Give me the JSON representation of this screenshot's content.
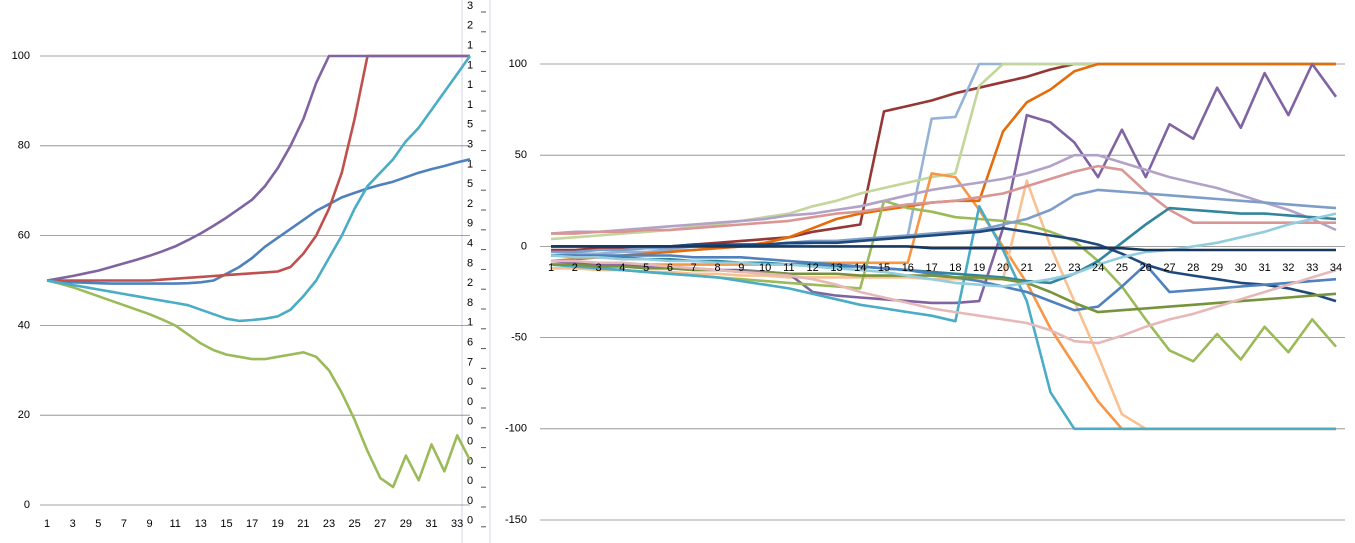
{
  "chart_data": [
    {
      "type": "line",
      "categories": [
        1,
        null,
        3,
        null,
        5,
        null,
        7,
        null,
        9,
        null,
        11,
        null,
        13,
        null,
        15,
        null,
        17,
        null,
        19,
        null,
        21,
        null,
        23,
        null,
        25,
        null,
        27,
        null,
        29,
        null,
        31,
        null,
        33,
        null
      ],
      "ylim": [
        0,
        100
      ],
      "yticks": [
        0,
        20,
        40,
        60,
        80,
        100
      ],
      "grid": true,
      "series": [
        {
          "color": "#4f81bd",
          "values": [
            50,
            49.8,
            49.6,
            49.5,
            49.4,
            49.3,
            49.3,
            49.3,
            49.3,
            49.3,
            49.3,
            49.4,
            49.6,
            50,
            51.5,
            53,
            55,
            57.5,
            59.5,
            61.5,
            63.5,
            65.5,
            67,
            68.5,
            69.5,
            70.5,
            71.3,
            72,
            73,
            74,
            74.8,
            75.5,
            76.3,
            77
          ]
        },
        {
          "color": "#c0504d",
          "values": [
            50,
            50,
            50,
            50,
            50,
            50,
            50,
            50,
            50,
            50.2,
            50.4,
            50.6,
            50.8,
            51,
            51.2,
            51.4,
            51.6,
            51.8,
            52,
            53,
            56,
            60,
            66,
            74,
            86,
            100,
            100,
            100,
            100,
            100,
            100,
            100,
            100,
            100
          ]
        },
        {
          "color": "#9bbb59",
          "values": [
            50,
            49.3,
            48.5,
            47.5,
            46.5,
            45.5,
            44.5,
            43.5,
            42.5,
            41.3,
            40,
            38,
            36,
            34.5,
            33.5,
            33,
            32.5,
            32.5,
            33,
            33.5,
            34,
            33,
            30,
            25,
            19,
            12,
            6,
            4,
            11,
            5.5,
            13.5,
            7.5,
            15.5,
            10
          ]
        },
        {
          "color": "#8064a2",
          "values": [
            50,
            50.5,
            51,
            51.6,
            52.2,
            53,
            53.8,
            54.6,
            55.5,
            56.5,
            57.6,
            59,
            60.5,
            62.2,
            64,
            66,
            68,
            71,
            75,
            80,
            86,
            94,
            100,
            100,
            100,
            100,
            100,
            100,
            100,
            100,
            100,
            100,
            100,
            100
          ]
        },
        {
          "color": "#4bacc6",
          "values": [
            50,
            49.5,
            49,
            48.5,
            48,
            47.5,
            47,
            46.5,
            46,
            45.5,
            45,
            44.5,
            43.5,
            42.5,
            41.5,
            41,
            41.2,
            41.5,
            42,
            43.5,
            46.5,
            50,
            55,
            60,
            66,
            71,
            74,
            77,
            81,
            84,
            88,
            92,
            96,
            100
          ]
        }
      ]
    },
    {
      "type": "line",
      "categories": [
        1,
        2,
        3,
        4,
        5,
        6,
        7,
        8,
        9,
        10,
        11,
        12,
        13,
        14,
        15,
        16,
        17,
        18,
        19,
        20,
        21,
        22,
        23,
        24,
        25,
        26,
        27,
        28,
        29,
        30,
        31,
        32,
        33,
        34
      ],
      "ylim": [
        -150,
        100
      ],
      "yticks": [
        -150,
        -100,
        -50,
        0,
        50,
        100
      ],
      "grid": true,
      "series": [
        {
          "color": "#953735",
          "values": [
            -2,
            -2,
            -1,
            -1,
            0,
            0,
            1,
            2,
            3,
            4,
            5,
            8,
            10,
            12,
            74,
            77,
            80,
            84,
            87,
            90,
            93,
            97,
            100,
            100,
            100,
            100,
            100,
            100,
            100,
            100,
            100,
            100,
            100,
            100
          ]
        },
        {
          "color": "#95b3d7",
          "values": [
            -5,
            -4,
            -4,
            -3,
            -3,
            -2,
            -2,
            -1,
            0,
            0,
            1,
            2,
            3,
            4,
            5,
            6,
            70,
            71,
            100,
            100,
            100,
            100,
            100,
            100,
            100,
            100,
            100,
            100,
            100,
            100,
            100,
            100,
            100,
            100
          ]
        },
        {
          "color": "#c3d69b",
          "values": [
            4,
            5,
            6,
            7,
            8,
            9,
            11,
            12,
            14,
            16,
            18,
            22,
            25,
            29,
            32,
            35,
            38,
            40,
            88,
            100,
            100,
            100,
            100,
            100,
            100,
            100,
            100,
            100,
            100,
            100,
            100,
            100,
            100,
            100
          ]
        },
        {
          "color": "#f79646",
          "values": [
            -10,
            -10,
            -10,
            -10,
            -10,
            -10,
            -10,
            -10,
            -10,
            -10,
            -10,
            -9,
            -9,
            -9,
            -9,
            -9,
            40,
            38,
            20,
            0,
            -20,
            -45,
            -65,
            -85,
            -100,
            -100,
            -100,
            -100,
            -100,
            -100,
            -100,
            -100,
            -100,
            -100
          ]
        },
        {
          "color": "#e46c0a",
          "values": [
            -8,
            -7,
            -6,
            -5,
            -4,
            -3,
            -2,
            -1,
            0,
            2,
            5,
            10,
            15,
            18,
            20,
            22,
            24,
            25,
            25,
            63,
            79,
            86,
            96,
            100,
            100,
            100,
            100,
            100,
            100,
            100,
            100,
            100,
            100,
            100
          ]
        },
        {
          "color": "#fac090",
          "values": [
            -12,
            -12,
            -13,
            -13,
            -14,
            -14,
            -15,
            -15,
            -16,
            -16,
            -17,
            -17,
            -17,
            -17,
            -17,
            -17,
            -18,
            -18,
            -18,
            -18,
            36,
            0,
            -30,
            -60,
            -92,
            -100,
            -100,
            -100,
            -100,
            -100,
            -100,
            -100,
            -100,
            -100
          ]
        },
        {
          "color": "#8064a2",
          "values": [
            -8,
            -9,
            -10,
            -10,
            -11,
            -12,
            -12,
            -13,
            -13,
            -14,
            -15,
            -25,
            -27,
            -28,
            -29,
            -30,
            -31,
            -31,
            -30,
            10,
            72,
            68,
            57,
            38,
            64,
            38,
            67,
            59,
            87,
            65,
            95,
            72,
            100,
            82
          ]
        },
        {
          "color": "#9bbb59",
          "values": [
            -10,
            -11,
            -12,
            -13,
            -14,
            -15,
            -16,
            -17,
            -18,
            -19,
            -20,
            -21,
            -22,
            -23,
            25,
            21,
            19,
            16,
            15,
            14,
            12,
            8,
            3,
            -8,
            -22,
            -40,
            -57,
            -63,
            -48,
            -62,
            -44,
            -58,
            -40,
            -55
          ]
        },
        {
          "color": "#4bacc6",
          "values": [
            -10,
            -11,
            -12,
            -13,
            -14,
            -15,
            -16,
            -17,
            -19,
            -21,
            -23,
            -26,
            -29,
            -32,
            -34,
            -36,
            -38,
            -41,
            22,
            -2,
            -30,
            -80,
            -100,
            -100,
            -100,
            -100,
            -100,
            -100,
            -100,
            -100,
            -100,
            -100,
            -100,
            -100
          ]
        },
        {
          "color": "#b3a2c7",
          "values": [
            7,
            8,
            8,
            9,
            10,
            11,
            12,
            13,
            14,
            15,
            17,
            18,
            20,
            22,
            25,
            28,
            31,
            33,
            35,
            37,
            40,
            44,
            50,
            50,
            46,
            42,
            38,
            35,
            32,
            28,
            24,
            20,
            15,
            9
          ]
        },
        {
          "color": "#d99694",
          "values": [
            7,
            7,
            8,
            8,
            9,
            9,
            10,
            11,
            12,
            13,
            14,
            16,
            18,
            19,
            21,
            23,
            24,
            25,
            27,
            29,
            33,
            37,
            41,
            44,
            42,
            30,
            20,
            13,
            13,
            13,
            13,
            13,
            13,
            13
          ]
        },
        {
          "color": "#7e9dc8",
          "values": [
            -3,
            -3,
            -2,
            -2,
            -1,
            -1,
            0,
            0,
            1,
            1,
            2,
            3,
            3,
            4,
            5,
            6,
            7,
            8,
            9,
            12,
            15,
            20,
            28,
            31,
            30,
            29,
            28,
            27,
            26,
            25,
            24,
            23,
            22,
            21
          ]
        },
        {
          "color": "#31859c",
          "values": [
            -5,
            -5,
            -6,
            -6,
            -7,
            -7,
            -8,
            -8,
            -9,
            -9,
            -10,
            -10,
            -11,
            -11,
            -12,
            -13,
            -14,
            -15,
            -16,
            -17,
            -19,
            -20,
            -15,
            -8,
            2,
            12,
            21,
            20,
            19,
            18,
            18,
            17,
            16,
            15
          ]
        },
        {
          "color": "#1f497d",
          "values": [
            0,
            0,
            0,
            0,
            0,
            0,
            1,
            1,
            1,
            1,
            2,
            2,
            2,
            3,
            4,
            5,
            6,
            7,
            8,
            10,
            8,
            6,
            4,
            1,
            -4,
            -10,
            -14,
            -16,
            -18,
            -20,
            -21,
            -23,
            -26,
            -30
          ]
        },
        {
          "color": "#4f81bd",
          "values": [
            -5,
            -5,
            -5,
            -5,
            -5,
            -5,
            -6,
            -6,
            -6,
            -7,
            -8,
            -9,
            -10,
            -11,
            -12,
            -13,
            -15,
            -17,
            -19,
            -22,
            -25,
            -30,
            -35,
            -33,
            -22,
            -10,
            -25,
            -24,
            -23,
            -22,
            -21,
            -20,
            -19,
            -18
          ]
        },
        {
          "color": "#77933c",
          "values": [
            -10,
            -10,
            -11,
            -11,
            -12,
            -12,
            -13,
            -13,
            -14,
            -14,
            -15,
            -15,
            -15,
            -16,
            -16,
            -16,
            -16,
            -17,
            -17,
            -18,
            -20,
            -25,
            -31,
            -36,
            -35,
            -34,
            -33,
            -32,
            -31,
            -30,
            -29,
            -28,
            -27,
            -26
          ]
        },
        {
          "color": "#e6b9b8",
          "values": [
            -8,
            -8,
            -9,
            -9,
            -10,
            -11,
            -12,
            -13,
            -14,
            -15,
            -16,
            -18,
            -21,
            -25,
            -28,
            -31,
            -34,
            -36,
            -38,
            -40,
            -42,
            -46,
            -52,
            -53,
            -49,
            -44,
            -40,
            -37,
            -33,
            -29,
            -25,
            -21,
            -17,
            -13
          ]
        },
        {
          "color": "#93cddd",
          "values": [
            -5,
            -6,
            -6,
            -7,
            -7,
            -8,
            -8,
            -9,
            -9,
            -10,
            -10,
            -11,
            -12,
            -13,
            -14,
            -16,
            -18,
            -20,
            -21,
            -22,
            -20,
            -18,
            -15,
            -10,
            -6,
            -3,
            -2,
            0,
            2,
            5,
            8,
            12,
            15,
            18
          ]
        },
        {
          "color": "#17375e",
          "values": [
            0,
            0,
            0,
            0,
            0,
            0,
            0,
            0,
            0,
            0,
            0,
            0,
            0,
            0,
            0,
            0,
            -1,
            -1,
            -1,
            -1,
            -1,
            -1,
            -1,
            -1,
            -1,
            -2,
            -2,
            -2,
            -2,
            -2,
            -2,
            -2,
            -2,
            -2
          ]
        }
      ]
    }
  ],
  "column_fragments": [
    "3",
    "2",
    "1",
    "1",
    "1",
    "1",
    "5",
    "3",
    "1",
    "5",
    "2",
    "9",
    "4",
    "8",
    "2",
    "8",
    "1",
    "6",
    "7",
    "0",
    "0",
    "0",
    "0",
    "0",
    "0",
    "0",
    "0"
  ]
}
